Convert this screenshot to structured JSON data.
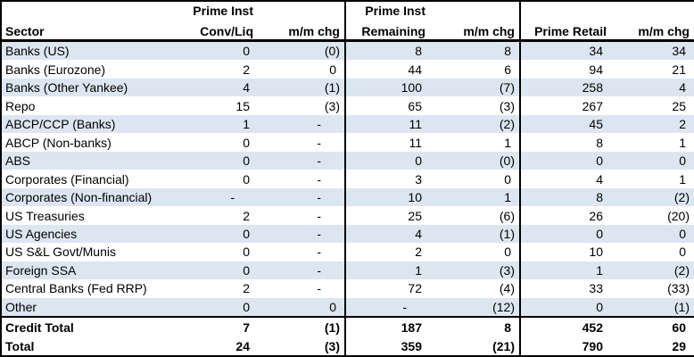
{
  "colors": {
    "background": "#FFFFFF",
    "text": "#000000",
    "border": "#000000",
    "row_shade": "#DCE6F1"
  },
  "chart_data": {
    "type": "table",
    "header": {
      "sector": "Sector",
      "prime_inst_group1": "Prime Inst",
      "conv_liq": "Conv/Liq",
      "mm_chg_1": "m/m chg",
      "prime_inst_group2": "Prime Inst",
      "remaining": "Remaining",
      "mm_chg_2": "m/m chg",
      "prime_retail": "Prime Retail",
      "mm_chg_3": "m/m chg"
    },
    "columns": [
      "Sector",
      "Prime Inst Conv/Liq",
      "m/m chg",
      "Prime Inst Remaining",
      "m/m chg",
      "Prime Retail",
      "m/m chg"
    ],
    "rows": [
      {
        "sector": "Banks (US)",
        "values": [
          "0",
          "(0)",
          "8",
          "8",
          "34",
          "34"
        ],
        "shaded": true
      },
      {
        "sector": "Banks (Eurozone)",
        "values": [
          "2",
          "0",
          "44",
          "6",
          "94",
          "21"
        ],
        "shaded": false
      },
      {
        "sector": "Banks (Other Yankee)",
        "values": [
          "4",
          "(1)",
          "100",
          "(7)",
          "258",
          "4"
        ],
        "shaded": true
      },
      {
        "sector": "Repo",
        "values": [
          "15",
          "(3)",
          "65",
          "(3)",
          "267",
          "25"
        ],
        "shaded": false
      },
      {
        "sector": "ABCP/CCP (Banks)",
        "values": [
          "1",
          "-",
          "11",
          "(2)",
          "45",
          "2"
        ],
        "shaded": true
      },
      {
        "sector": "ABCP (Non-banks)",
        "values": [
          "0",
          "-",
          "11",
          "1",
          "8",
          "1"
        ],
        "shaded": false
      },
      {
        "sector": "ABS",
        "values": [
          "0",
          "-",
          "0",
          "(0)",
          "0",
          "0"
        ],
        "shaded": true
      },
      {
        "sector": "Corporates (Financial)",
        "values": [
          "0",
          "-",
          "3",
          "0",
          "4",
          "1"
        ],
        "shaded": false
      },
      {
        "sector": "Corporates (Non-financial)",
        "values": [
          "-",
          "-",
          "10",
          "1",
          "8",
          "(2)"
        ],
        "shaded": true
      },
      {
        "sector": "US Treasuries",
        "values": [
          "2",
          "-",
          "25",
          "(6)",
          "26",
          "(20)"
        ],
        "shaded": false
      },
      {
        "sector": "US Agencies",
        "values": [
          "0",
          "-",
          "4",
          "(1)",
          "0",
          "0"
        ],
        "shaded": true
      },
      {
        "sector": "US S&L Govt/Munis",
        "values": [
          "0",
          "-",
          "2",
          "0",
          "10",
          "0"
        ],
        "shaded": false
      },
      {
        "sector": "Foreign SSA",
        "values": [
          "0",
          "-",
          "1",
          "(3)",
          "1",
          "(2)"
        ],
        "shaded": true
      },
      {
        "sector": "Central Banks (Fed RRP)",
        "values": [
          "2",
          "-",
          "72",
          "(4)",
          "33",
          "(33)"
        ],
        "shaded": false
      },
      {
        "sector": "Other",
        "values": [
          "0",
          "0",
          "-",
          "(12)",
          "0",
          "(1)"
        ],
        "shaded": true
      }
    ],
    "total_rows": [
      {
        "sector": "Credit Total",
        "values": [
          "7",
          "(1)",
          "187",
          "8",
          "452",
          "60"
        ]
      },
      {
        "sector": "Total",
        "values": [
          "24",
          "(3)",
          "359",
          "(21)",
          "790",
          "29"
        ]
      }
    ]
  }
}
